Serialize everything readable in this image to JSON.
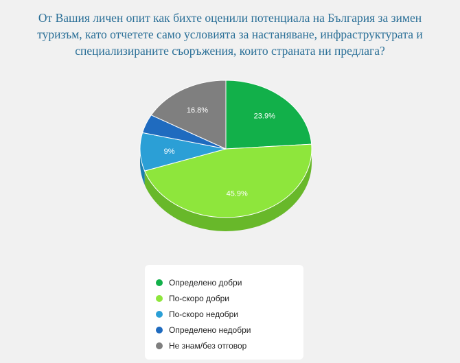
{
  "title_lines": [
    "От Вашия личен опит как бихте оценили потенциала на България за зимен",
    "туризъм, като отчетете само условията за настаняване, инфраструктурата и",
    "специализираните съоръжения, които страната ни предлага?"
  ],
  "chart_data": {
    "type": "pie",
    "title": "От Вашия личен опит как бихте оценили потенциала на България за зимен туризъм, като отчетете само условията за настаняване, инфраструктурата и специализираните съоръжения, които страната ни предлага?",
    "categories": [
      "Определено добри",
      "По-скоро добри",
      "По-скоро недобри",
      "Определено недобри",
      "Не знам/без отговор"
    ],
    "values": [
      23.9,
      45.9,
      9,
      4.4,
      16.8
    ],
    "data_labels": [
      "23.9%",
      "45.9%",
      "9%",
      "",
      "16.8%"
    ],
    "colors": [
      "#12b04a",
      "#8ee63c",
      "#2b9fd6",
      "#1f6bbf",
      "#7f7f7f"
    ],
    "side_colors": [
      "#0a8a38",
      "#68b82a",
      "#1b7fb0",
      "#155290",
      "#5e5e5e"
    ],
    "legend_position": "bottom"
  }
}
